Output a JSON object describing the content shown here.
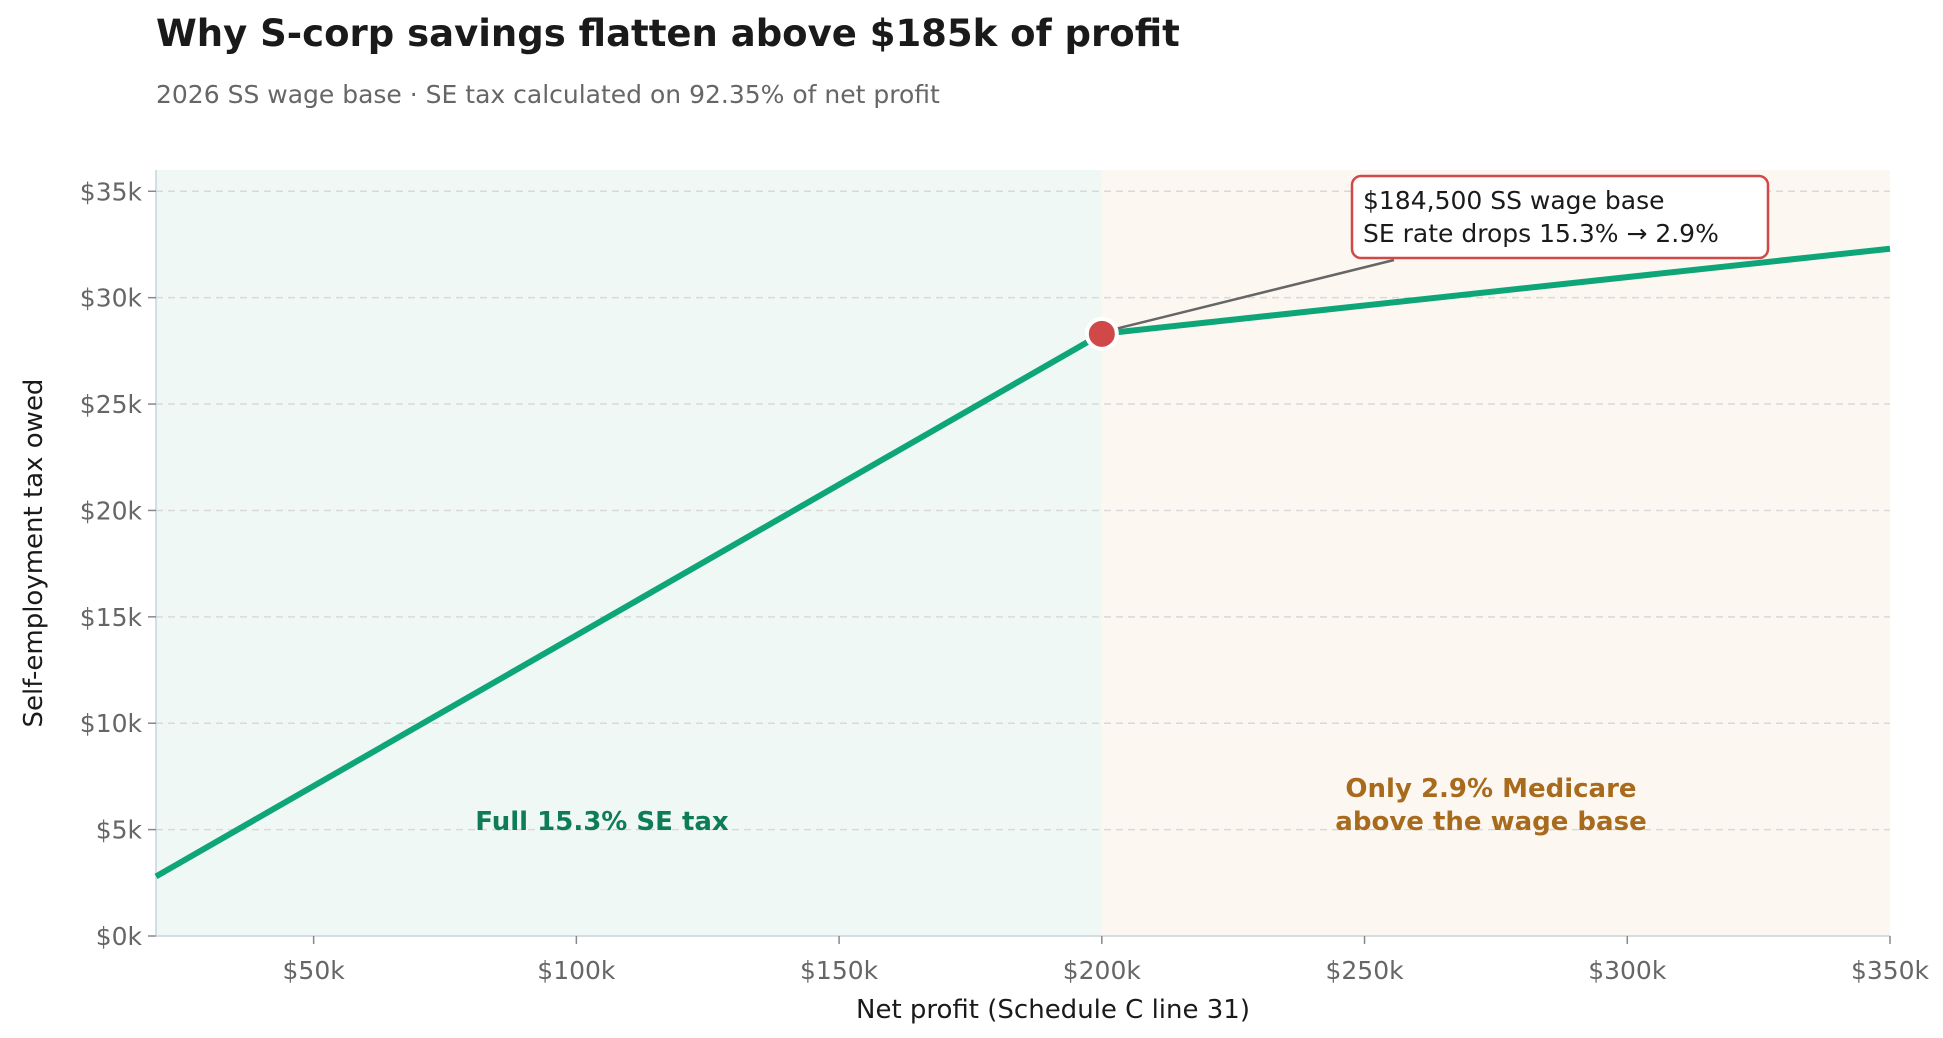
{
  "title": "Why S-corp savings flatten above $185k of profit",
  "subtitle": "2026 SS wage base · SE tax calculated on 92.35% of net profit",
  "colors": {
    "line": "#0ea678",
    "marker": "#d04848",
    "region_left": "#f0f8f5",
    "region_right": "#fcf7f1",
    "left_label": "#0e7c57",
    "right_label": "#a86b1d",
    "grid": "#d9d9d9",
    "axis_text": "#666666"
  },
  "chart_data": {
    "type": "line",
    "title": "Why S-corp savings flatten above $185k of profit",
    "subtitle": "2026 SS wage base · SE tax calculated on 92.35% of net profit",
    "xlabel": "Net profit (Schedule C line 31)",
    "ylabel": "Self-employment tax owed",
    "xlim": [
      20000,
      350000
    ],
    "ylim": [
      0,
      36000
    ],
    "x_ticks": [
      50000,
      100000,
      150000,
      200000,
      250000,
      300000,
      350000
    ],
    "x_tick_labels": [
      "$50k",
      "$100k",
      "$150k",
      "$200k",
      "$250k",
      "$300k",
      "$350k"
    ],
    "y_ticks": [
      0,
      5000,
      10000,
      15000,
      20000,
      25000,
      30000,
      35000
    ],
    "y_tick_labels": [
      "$0k",
      "$5k",
      "$10k",
      "$15k",
      "$20k",
      "$25k",
      "$30k",
      "$35k"
    ],
    "grid": "y, dashed",
    "series": [
      {
        "x": [
          20000,
          200000,
          350000
        ],
        "y": [
          2800,
          28300,
          32300
        ]
      }
    ],
    "marker_point": {
      "x": 200000,
      "y": 28300
    },
    "regions": [
      {
        "x_start": 20000,
        "x_end": 200000,
        "label": "Full 15.3% SE tax"
      },
      {
        "x_start": 200000,
        "x_end": 350000,
        "label_lines": [
          "Only 2.9% Medicare",
          "above the wage base"
        ]
      }
    ],
    "annotation": {
      "lines": [
        "$184,500 SS wage base",
        "SE rate drops 15.3% → 2.9%"
      ]
    }
  }
}
